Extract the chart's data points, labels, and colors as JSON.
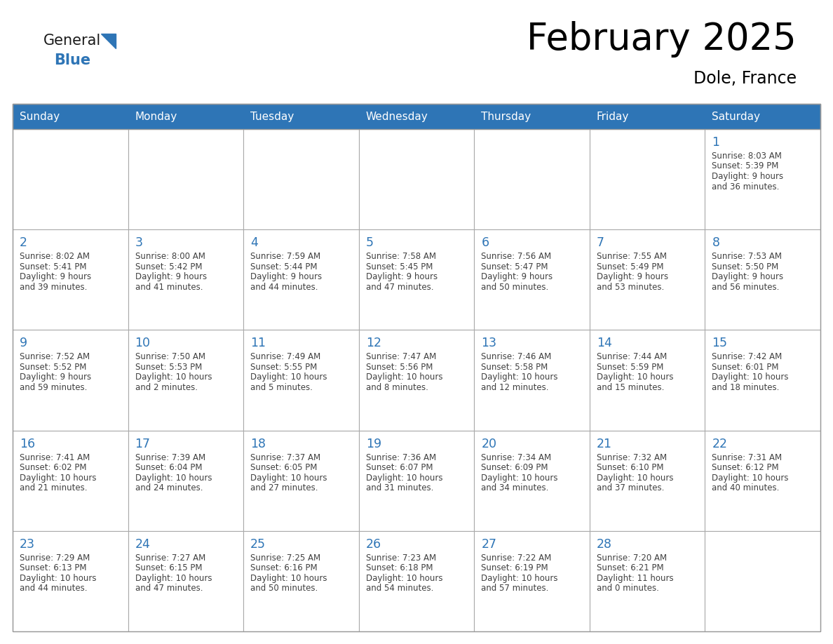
{
  "title": "February 2025",
  "subtitle": "Dole, France",
  "days_of_week": [
    "Sunday",
    "Monday",
    "Tuesday",
    "Wednesday",
    "Thursday",
    "Friday",
    "Saturday"
  ],
  "header_bg": "#2E75B6",
  "header_text": "#FFFFFF",
  "cell_bg": "#FFFFFF",
  "cell_border": "#AAAAAA",
  "day_number_color": "#2E75B6",
  "info_text_color": "#404040",
  "calendar_data": [
    [
      null,
      null,
      null,
      null,
      null,
      null,
      {
        "day": 1,
        "sunrise": "8:03 AM",
        "sunset": "5:39 PM",
        "daylight_line1": "9 hours",
        "daylight_line2": "and 36 minutes."
      }
    ],
    [
      {
        "day": 2,
        "sunrise": "8:02 AM",
        "sunset": "5:41 PM",
        "daylight_line1": "9 hours",
        "daylight_line2": "and 39 minutes."
      },
      {
        "day": 3,
        "sunrise": "8:00 AM",
        "sunset": "5:42 PM",
        "daylight_line1": "9 hours",
        "daylight_line2": "and 41 minutes."
      },
      {
        "day": 4,
        "sunrise": "7:59 AM",
        "sunset": "5:44 PM",
        "daylight_line1": "9 hours",
        "daylight_line2": "and 44 minutes."
      },
      {
        "day": 5,
        "sunrise": "7:58 AM",
        "sunset": "5:45 PM",
        "daylight_line1": "9 hours",
        "daylight_line2": "and 47 minutes."
      },
      {
        "day": 6,
        "sunrise": "7:56 AM",
        "sunset": "5:47 PM",
        "daylight_line1": "9 hours",
        "daylight_line2": "and 50 minutes."
      },
      {
        "day": 7,
        "sunrise": "7:55 AM",
        "sunset": "5:49 PM",
        "daylight_line1": "9 hours",
        "daylight_line2": "and 53 minutes."
      },
      {
        "day": 8,
        "sunrise": "7:53 AM",
        "sunset": "5:50 PM",
        "daylight_line1": "9 hours",
        "daylight_line2": "and 56 minutes."
      }
    ],
    [
      {
        "day": 9,
        "sunrise": "7:52 AM",
        "sunset": "5:52 PM",
        "daylight_line1": "9 hours",
        "daylight_line2": "and 59 minutes."
      },
      {
        "day": 10,
        "sunrise": "7:50 AM",
        "sunset": "5:53 PM",
        "daylight_line1": "10 hours",
        "daylight_line2": "and 2 minutes."
      },
      {
        "day": 11,
        "sunrise": "7:49 AM",
        "sunset": "5:55 PM",
        "daylight_line1": "10 hours",
        "daylight_line2": "and 5 minutes."
      },
      {
        "day": 12,
        "sunrise": "7:47 AM",
        "sunset": "5:56 PM",
        "daylight_line1": "10 hours",
        "daylight_line2": "and 8 minutes."
      },
      {
        "day": 13,
        "sunrise": "7:46 AM",
        "sunset": "5:58 PM",
        "daylight_line1": "10 hours",
        "daylight_line2": "and 12 minutes."
      },
      {
        "day": 14,
        "sunrise": "7:44 AM",
        "sunset": "5:59 PM",
        "daylight_line1": "10 hours",
        "daylight_line2": "and 15 minutes."
      },
      {
        "day": 15,
        "sunrise": "7:42 AM",
        "sunset": "6:01 PM",
        "daylight_line1": "10 hours",
        "daylight_line2": "and 18 minutes."
      }
    ],
    [
      {
        "day": 16,
        "sunrise": "7:41 AM",
        "sunset": "6:02 PM",
        "daylight_line1": "10 hours",
        "daylight_line2": "and 21 minutes."
      },
      {
        "day": 17,
        "sunrise": "7:39 AM",
        "sunset": "6:04 PM",
        "daylight_line1": "10 hours",
        "daylight_line2": "and 24 minutes."
      },
      {
        "day": 18,
        "sunrise": "7:37 AM",
        "sunset": "6:05 PM",
        "daylight_line1": "10 hours",
        "daylight_line2": "and 27 minutes."
      },
      {
        "day": 19,
        "sunrise": "7:36 AM",
        "sunset": "6:07 PM",
        "daylight_line1": "10 hours",
        "daylight_line2": "and 31 minutes."
      },
      {
        "day": 20,
        "sunrise": "7:34 AM",
        "sunset": "6:09 PM",
        "daylight_line1": "10 hours",
        "daylight_line2": "and 34 minutes."
      },
      {
        "day": 21,
        "sunrise": "7:32 AM",
        "sunset": "6:10 PM",
        "daylight_line1": "10 hours",
        "daylight_line2": "and 37 minutes."
      },
      {
        "day": 22,
        "sunrise": "7:31 AM",
        "sunset": "6:12 PM",
        "daylight_line1": "10 hours",
        "daylight_line2": "and 40 minutes."
      }
    ],
    [
      {
        "day": 23,
        "sunrise": "7:29 AM",
        "sunset": "6:13 PM",
        "daylight_line1": "10 hours",
        "daylight_line2": "and 44 minutes."
      },
      {
        "day": 24,
        "sunrise": "7:27 AM",
        "sunset": "6:15 PM",
        "daylight_line1": "10 hours",
        "daylight_line2": "and 47 minutes."
      },
      {
        "day": 25,
        "sunrise": "7:25 AM",
        "sunset": "6:16 PM",
        "daylight_line1": "10 hours",
        "daylight_line2": "and 50 minutes."
      },
      {
        "day": 26,
        "sunrise": "7:23 AM",
        "sunset": "6:18 PM",
        "daylight_line1": "10 hours",
        "daylight_line2": "and 54 minutes."
      },
      {
        "day": 27,
        "sunrise": "7:22 AM",
        "sunset": "6:19 PM",
        "daylight_line1": "10 hours",
        "daylight_line2": "and 57 minutes."
      },
      {
        "day": 28,
        "sunrise": "7:20 AM",
        "sunset": "6:21 PM",
        "daylight_line1": "11 hours",
        "daylight_line2": "and 0 minutes."
      },
      null
    ]
  ],
  "logo_general_color": "#1a1a1a",
  "logo_blue_color": "#2E75B6",
  "figsize": [
    11.88,
    9.18
  ],
  "dpi": 100
}
